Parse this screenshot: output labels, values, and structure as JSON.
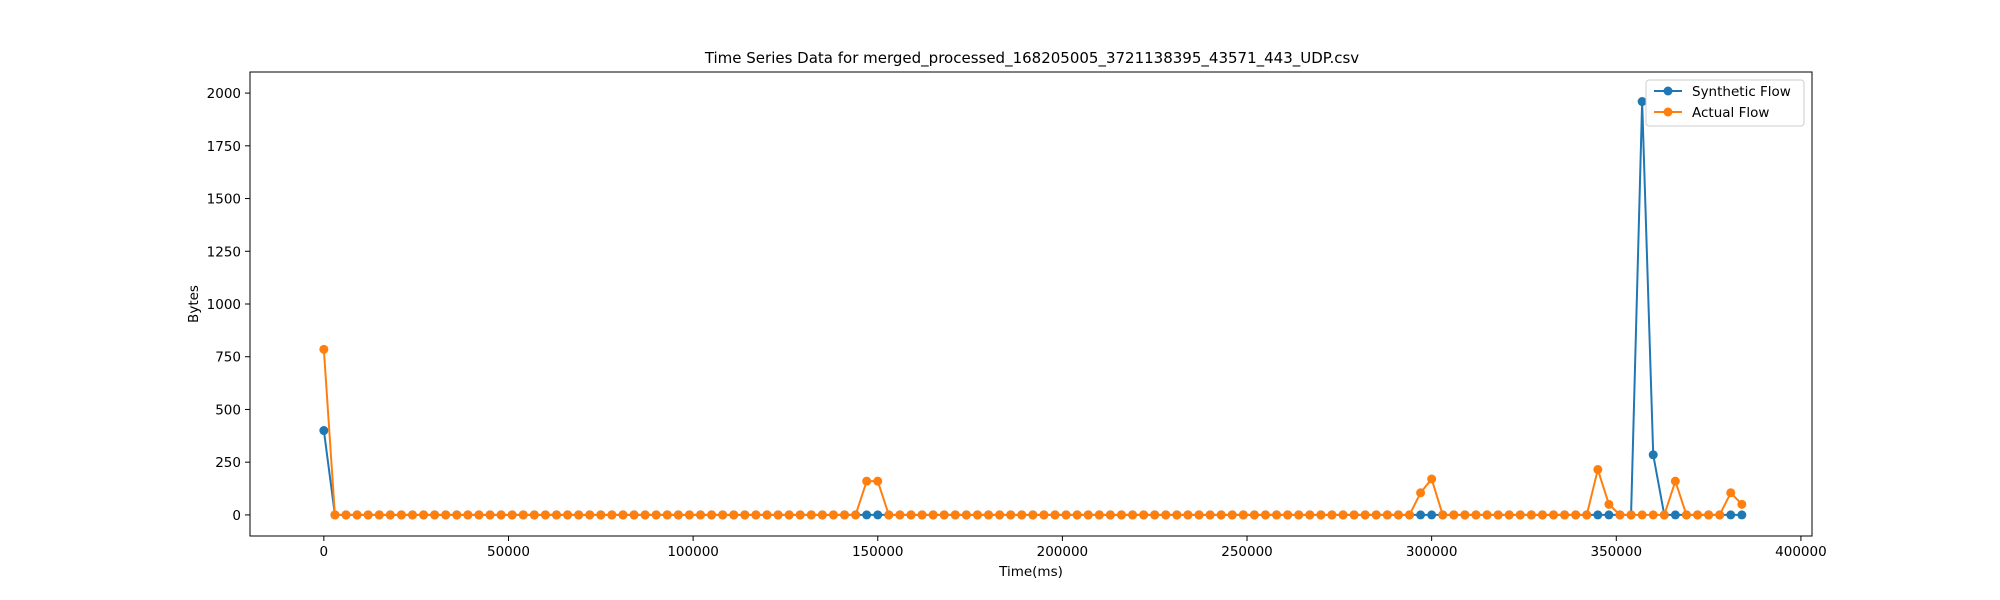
{
  "chart_data": {
    "type": "line",
    "title": "Time Series Data for merged_processed_168205005_3721138395_43571_443_UDP.csv",
    "xlabel": "Time(ms)",
    "ylabel": "Bytes",
    "xlim": [
      -20000,
      403000
    ],
    "ylim": [
      -100,
      2100
    ],
    "xticks": [
      0,
      50000,
      100000,
      150000,
      200000,
      250000,
      300000,
      350000,
      400000
    ],
    "yticks": [
      0,
      250,
      500,
      750,
      1000,
      1250,
      1500,
      1750,
      2000
    ],
    "grid": false,
    "legend_position": "top-right",
    "x": [
      0,
      3000,
      6000,
      9000,
      12000,
      15000,
      18000,
      21000,
      24000,
      27000,
      30000,
      33000,
      36000,
      39000,
      42000,
      45000,
      48000,
      51000,
      54000,
      57000,
      60000,
      63000,
      66000,
      69000,
      72000,
      75000,
      78000,
      81000,
      84000,
      87000,
      90000,
      93000,
      96000,
      99000,
      102000,
      105000,
      108000,
      111000,
      114000,
      117000,
      120000,
      123000,
      126000,
      129000,
      132000,
      135000,
      138000,
      141000,
      144000,
      147000,
      150000,
      153000,
      156000,
      159000,
      162000,
      165000,
      168000,
      171000,
      174000,
      177000,
      180000,
      183000,
      186000,
      189000,
      192000,
      195000,
      198000,
      201000,
      204000,
      207000,
      210000,
      213000,
      216000,
      219000,
      222000,
      225000,
      228000,
      231000,
      234000,
      237000,
      240000,
      243000,
      246000,
      249000,
      252000,
      255000,
      258000,
      261000,
      264000,
      267000,
      270000,
      273000,
      276000,
      279000,
      282000,
      285000,
      288000,
      291000,
      294000,
      297000,
      300000,
      303000,
      306000,
      309000,
      312000,
      315000,
      318000,
      321000,
      324000,
      327000,
      330000,
      333000,
      336000,
      339000,
      342000,
      345000,
      348000,
      351000,
      354000,
      357000,
      360000,
      363000,
      366000,
      369000,
      372000,
      375000,
      378000,
      381000,
      384000
    ],
    "series": [
      {
        "name": "Synthetic Flow",
        "color": "#1f77b4",
        "values": [
          400,
          0,
          0,
          0,
          0,
          0,
          0,
          0,
          0,
          0,
          0,
          0,
          0,
          0,
          0,
          0,
          0,
          0,
          0,
          0,
          0,
          0,
          0,
          0,
          0,
          0,
          0,
          0,
          0,
          0,
          0,
          0,
          0,
          0,
          0,
          0,
          0,
          0,
          0,
          0,
          0,
          0,
          0,
          0,
          0,
          0,
          0,
          0,
          0,
          0,
          0,
          0,
          0,
          0,
          0,
          0,
          0,
          0,
          0,
          0,
          0,
          0,
          0,
          0,
          0,
          0,
          0,
          0,
          0,
          0,
          0,
          0,
          0,
          0,
          0,
          0,
          0,
          0,
          0,
          0,
          0,
          0,
          0,
          0,
          0,
          0,
          0,
          0,
          0,
          0,
          0,
          0,
          0,
          0,
          0,
          0,
          0,
          0,
          0,
          0,
          0,
          0,
          0,
          0,
          0,
          0,
          0,
          0,
          0,
          0,
          0,
          0,
          0,
          0,
          0,
          0,
          0,
          0,
          0,
          1960,
          285,
          0,
          0,
          0,
          0,
          0,
          0,
          0,
          0
        ]
      },
      {
        "name": "Actual Flow",
        "color": "#ff7f0e",
        "values": [
          785,
          0,
          0,
          0,
          0,
          0,
          0,
          0,
          0,
          0,
          0,
          0,
          0,
          0,
          0,
          0,
          0,
          0,
          0,
          0,
          0,
          0,
          0,
          0,
          0,
          0,
          0,
          0,
          0,
          0,
          0,
          0,
          0,
          0,
          0,
          0,
          0,
          0,
          0,
          0,
          0,
          0,
          0,
          0,
          0,
          0,
          0,
          0,
          0,
          160,
          160,
          0,
          0,
          0,
          0,
          0,
          0,
          0,
          0,
          0,
          0,
          0,
          0,
          0,
          0,
          0,
          0,
          0,
          0,
          0,
          0,
          0,
          0,
          0,
          0,
          0,
          0,
          0,
          0,
          0,
          0,
          0,
          0,
          0,
          0,
          0,
          0,
          0,
          0,
          0,
          0,
          0,
          0,
          0,
          0,
          0,
          0,
          0,
          0,
          105,
          170,
          0,
          0,
          0,
          0,
          0,
          0,
          0,
          0,
          0,
          0,
          0,
          0,
          0,
          0,
          215,
          50,
          0,
          0,
          0,
          0,
          0,
          160,
          0,
          0,
          0,
          0,
          105,
          50
        ]
      }
    ]
  }
}
